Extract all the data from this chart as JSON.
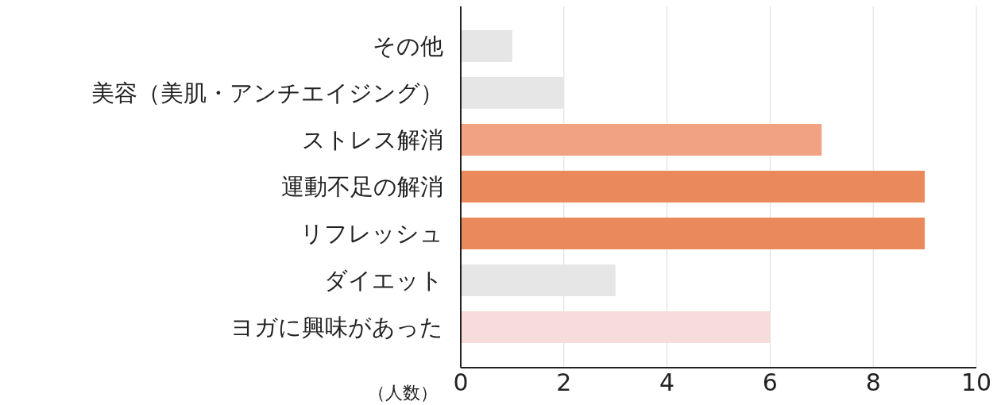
{
  "chart_data": {
    "type": "bar",
    "orientation": "horizontal",
    "xlabel": "（人数）",
    "categories": [
      "その他",
      "美容（美肌・アンチエイジング）",
      "ストレス解消",
      "運動不足の解消",
      "リフレッシュ",
      "ダイエット",
      "ヨガに興味があった"
    ],
    "values": [
      1,
      2,
      7,
      9,
      9,
      3,
      6
    ],
    "colors": [
      "#e6e6e6",
      "#e6e6e6",
      "#f0a283",
      "#ea8a5c",
      "#ea8a5c",
      "#e6e6e6",
      "#f7dcdc"
    ],
    "xlim": [
      0,
      10
    ],
    "xticks": [
      0,
      2,
      4,
      6,
      8,
      10
    ],
    "grid": "x"
  }
}
